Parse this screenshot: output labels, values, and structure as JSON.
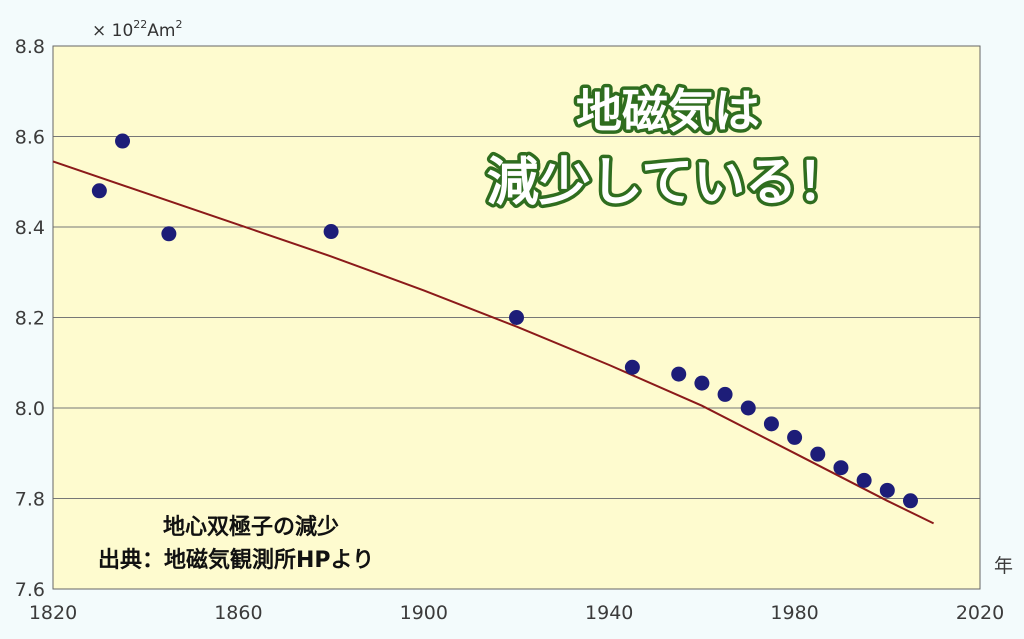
{
  "headline": {
    "line1": "地磁気は",
    "line2": "減少している！"
  },
  "caption": {
    "line1": "地心双極子の減少",
    "line2": "出典：地磁気観測所HPより"
  },
  "chart_data": {
    "type": "scatter",
    "unit_label": {
      "prefix": "× 10",
      "exp": "22",
      "mid": "Am",
      "exp2": "2"
    },
    "xlabel": "年",
    "ylabel": "",
    "xlim": [
      1820,
      2020
    ],
    "ylim": [
      7.6,
      8.8
    ],
    "x_ticks": [
      "1820",
      "1860",
      "1900",
      "1940",
      "1980",
      "2020"
    ],
    "y_ticks": [
      "7.6",
      "7.8",
      "8.0",
      "8.2",
      "8.4",
      "8.6",
      "8.8"
    ],
    "grid": "horizontal",
    "colors": {
      "plot_bg": "#fefbcf",
      "points": "#1d1d78",
      "trend": "#8b1a1a",
      "grid": "#777777"
    },
    "points": [
      [
        1830,
        8.48
      ],
      [
        1835,
        8.59
      ],
      [
        1845,
        8.385
      ],
      [
        1880,
        8.39
      ],
      [
        1920,
        8.2
      ],
      [
        1945,
        8.09
      ],
      [
        1955,
        8.075
      ],
      [
        1960,
        8.055
      ],
      [
        1965,
        8.03
      ],
      [
        1970,
        8.0
      ],
      [
        1975,
        7.965
      ],
      [
        1980,
        7.935
      ],
      [
        1985,
        7.898
      ],
      [
        1990,
        7.868
      ],
      [
        1995,
        7.84
      ],
      [
        2000,
        7.818
      ],
      [
        2005,
        7.795
      ]
    ],
    "trend": [
      [
        1820,
        8.545
      ],
      [
        1840,
        8.475
      ],
      [
        1860,
        8.405
      ],
      [
        1880,
        8.335
      ],
      [
        1900,
        8.26
      ],
      [
        1920,
        8.18
      ],
      [
        1940,
        8.095
      ],
      [
        1960,
        8.005
      ],
      [
        1980,
        7.9
      ],
      [
        2000,
        7.795
      ],
      [
        2010,
        7.745
      ]
    ]
  }
}
